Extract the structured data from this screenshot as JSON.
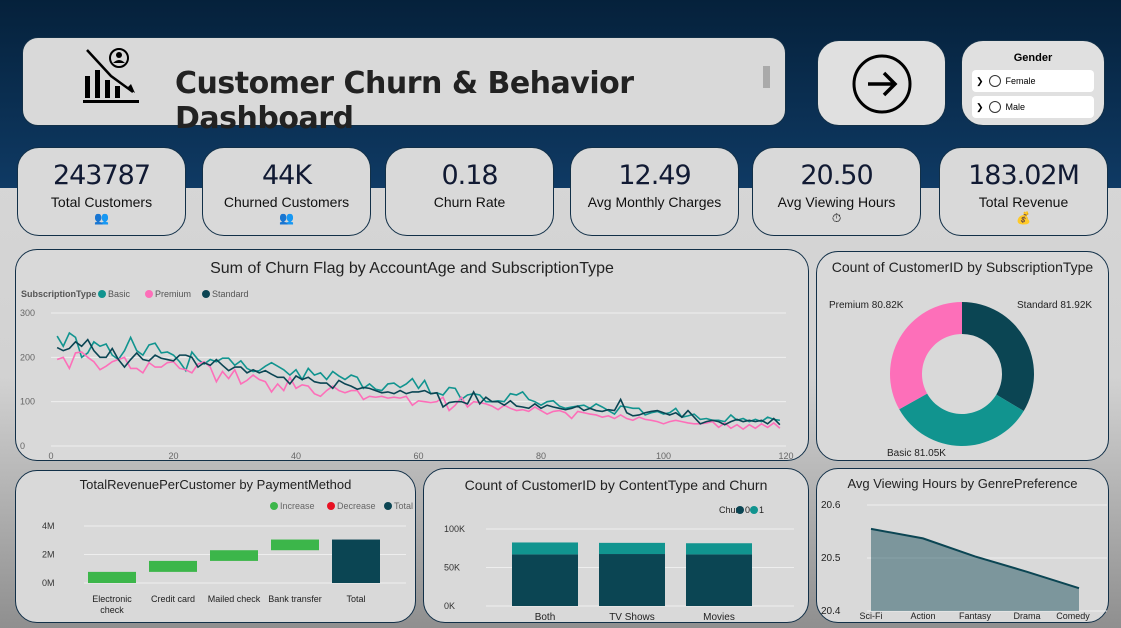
{
  "header": {
    "title": "Customer Churn & Behavior Dashboard",
    "logo_icon": "churn-chart-icon",
    "nav_icon": "arrow-right-circle-icon"
  },
  "gender_slicer": {
    "title": "Gender",
    "options": [
      "Female",
      "Male"
    ]
  },
  "kpis": [
    {
      "value": "243787",
      "label": "Total Customers",
      "icon": "👥"
    },
    {
      "value": "44K",
      "label": "Churned Customers",
      "icon": "👥"
    },
    {
      "value": "0.18",
      "label": "Churn Rate",
      "icon": ""
    },
    {
      "value": "12.49",
      "label": "Avg Monthly Charges",
      "icon": ""
    },
    {
      "value": "20.50",
      "label": "Avg Viewing Hours",
      "icon": "⏱"
    },
    {
      "value": "183.02M",
      "label": "Total Revenue",
      "icon": "💰"
    }
  ],
  "chart_data": [
    {
      "type": "line",
      "title": "Sum of Churn Flag by AccountAge and SubscriptionType",
      "legend_title": "SubscriptionType",
      "x_start": 1,
      "xlim": [
        0,
        120
      ],
      "ylim": [
        0,
        300
      ],
      "xticks": [
        0,
        20,
        40,
        60,
        80,
        100,
        120
      ],
      "yticks": [
        0,
        100,
        200,
        300
      ],
      "grid": true,
      "legend": "top-left",
      "series": [
        {
          "name": "Basic",
          "color": "#11948f",
          "values": [
            248,
            225,
            255,
            245,
            200,
            210,
            235,
            225,
            230,
            205,
            195,
            215,
            245,
            215,
            205,
            228,
            232,
            210,
            212,
            205,
            190,
            170,
            212,
            195,
            185,
            195,
            190,
            198,
            198,
            182,
            192,
            175,
            168,
            170,
            180,
            188,
            180,
            172,
            160,
            172,
            150,
            175,
            160,
            165,
            150,
            168,
            158,
            150,
            160,
            155,
            130,
            140,
            128,
            125,
            140,
            142,
            132,
            140,
            152,
            130,
            148,
            118,
            120,
            115,
            132,
            130,
            105,
            115,
            118,
            115,
            100,
            100,
            102,
            100,
            118,
            115,
            122,
            105,
            100,
            92,
            100,
            102,
            90,
            85,
            88,
            90,
            92,
            85,
            95,
            88,
            80,
            72,
            90,
            88,
            85,
            85,
            70,
            75,
            78,
            72,
            75,
            85,
            65,
            68,
            72,
            60,
            62,
            58,
            58,
            55,
            70,
            58,
            62,
            55,
            60,
            55,
            65,
            60,
            58
          ]
        },
        {
          "name": "Premium",
          "color": "#fd6fb9",
          "values": [
            195,
            200,
            175,
            210,
            212,
            200,
            190,
            172,
            180,
            190,
            195,
            200,
            175,
            175,
            165,
            188,
            178,
            178,
            188,
            190,
            175,
            172,
            165,
            185,
            190,
            178,
            145,
            168,
            152,
            172,
            140,
            148,
            160,
            150,
            145,
            122,
            140,
            125,
            155,
            130,
            138,
            135,
            118,
            112,
            125,
            135,
            125,
            120,
            125,
            125,
            105,
            112,
            110,
            112,
            108,
            110,
            108,
            112,
            92,
            102,
            100,
            98,
            100,
            110,
            80,
            92,
            110,
            88,
            100,
            98,
            95,
            90,
            82,
            92,
            85,
            80,
            82,
            78,
            88,
            80,
            72,
            78,
            80,
            75,
            62,
            78,
            75,
            72,
            70,
            65,
            68,
            62,
            70,
            62,
            58,
            65,
            60,
            58,
            55,
            50,
            55,
            58,
            55,
            52,
            50,
            50,
            52,
            55,
            42,
            52,
            40,
            48,
            38,
            48,
            40,
            50,
            42,
            52,
            40
          ]
        },
        {
          "name": "Standard",
          "color": "#0b4553",
          "values": [
            222,
            215,
            220,
            235,
            225,
            240,
            215,
            200,
            200,
            220,
            195,
            178,
            195,
            210,
            195,
            192,
            205,
            198,
            195,
            192,
            205,
            205,
            200,
            178,
            188,
            182,
            195,
            182,
            170,
            178,
            178,
            165,
            172,
            165,
            170,
            162,
            155,
            155,
            140,
            158,
            150,
            155,
            145,
            142,
            142,
            130,
            148,
            140,
            135,
            128,
            132,
            130,
            125,
            120,
            122,
            118,
            125,
            118,
            122,
            122,
            125,
            118,
            120,
            88,
            98,
            100,
            100,
            95,
            122,
            95,
            110,
            100,
            100,
            92,
            102,
            90,
            88,
            85,
            95,
            85,
            92,
            88,
            85,
            82,
            85,
            90,
            80,
            85,
            80,
            78,
            82,
            80,
            105,
            75,
            68,
            70,
            75,
            78,
            80,
            75,
            70,
            75,
            65,
            80,
            65,
            50,
            55,
            58,
            55,
            48,
            55,
            60,
            55,
            58,
            55,
            58,
            50,
            62,
            48
          ]
        }
      ]
    },
    {
      "type": "pie",
      "title": "Count of CustomerID by SubscriptionType",
      "donut": true,
      "slices": [
        {
          "name": "Standard",
          "value": 81920,
          "label": "Standard 81.92K",
          "color": "#0b4553"
        },
        {
          "name": "Basic",
          "value": 81050,
          "label": "Basic 81.05K",
          "color": "#11948f"
        },
        {
          "name": "Premium",
          "value": 80820,
          "label": "Premium 80.82K",
          "color": "#fd6fb9"
        }
      ]
    },
    {
      "type": "bar",
      "subtype": "waterfall",
      "title": "TotalRevenuePerCustomer by PaymentMethod",
      "legend": [
        "Increase",
        "Decrease",
        "Total"
      ],
      "legend_colors": [
        "#3cb64a",
        "#e81123",
        "#0b4553"
      ],
      "categories": [
        "Electronic check",
        "Credit card",
        "Mailed check",
        "Bank transfer",
        "Total"
      ],
      "values": [
        0.78,
        0.77,
        0.75,
        0.75,
        3.05
      ],
      "unit": "M",
      "ylim": [
        0,
        4
      ],
      "yticks": [
        "0M",
        "2M",
        "4M"
      ]
    },
    {
      "type": "bar",
      "subtype": "stacked",
      "title": "Count of CustomerID by ContentType and Churn",
      "legend_title": "Churn",
      "categories": [
        "Both",
        "TV Shows",
        "Movies"
      ],
      "series": [
        {
          "name": "0",
          "color": "#0b4553",
          "values": [
            67000,
            67500,
            67000
          ]
        },
        {
          "name": "1",
          "color": "#11948f",
          "values": [
            15500,
            14500,
            14500
          ]
        }
      ],
      "ylim": [
        0,
        100000
      ],
      "yticks": [
        "0K",
        "50K",
        "100K"
      ]
    },
    {
      "type": "area",
      "title": "Avg Viewing Hours by GenrePreference",
      "categories": [
        "Sci-Fi",
        "Action",
        "Fantasy",
        "Drama",
        "Comedy"
      ],
      "values": [
        20.555,
        20.537,
        20.503,
        20.474,
        20.443
      ],
      "ylim": [
        20.4,
        20.6
      ],
      "yticks": [
        "20.4",
        "20.5",
        "20.6"
      ],
      "color": "#0b4553"
    }
  ]
}
